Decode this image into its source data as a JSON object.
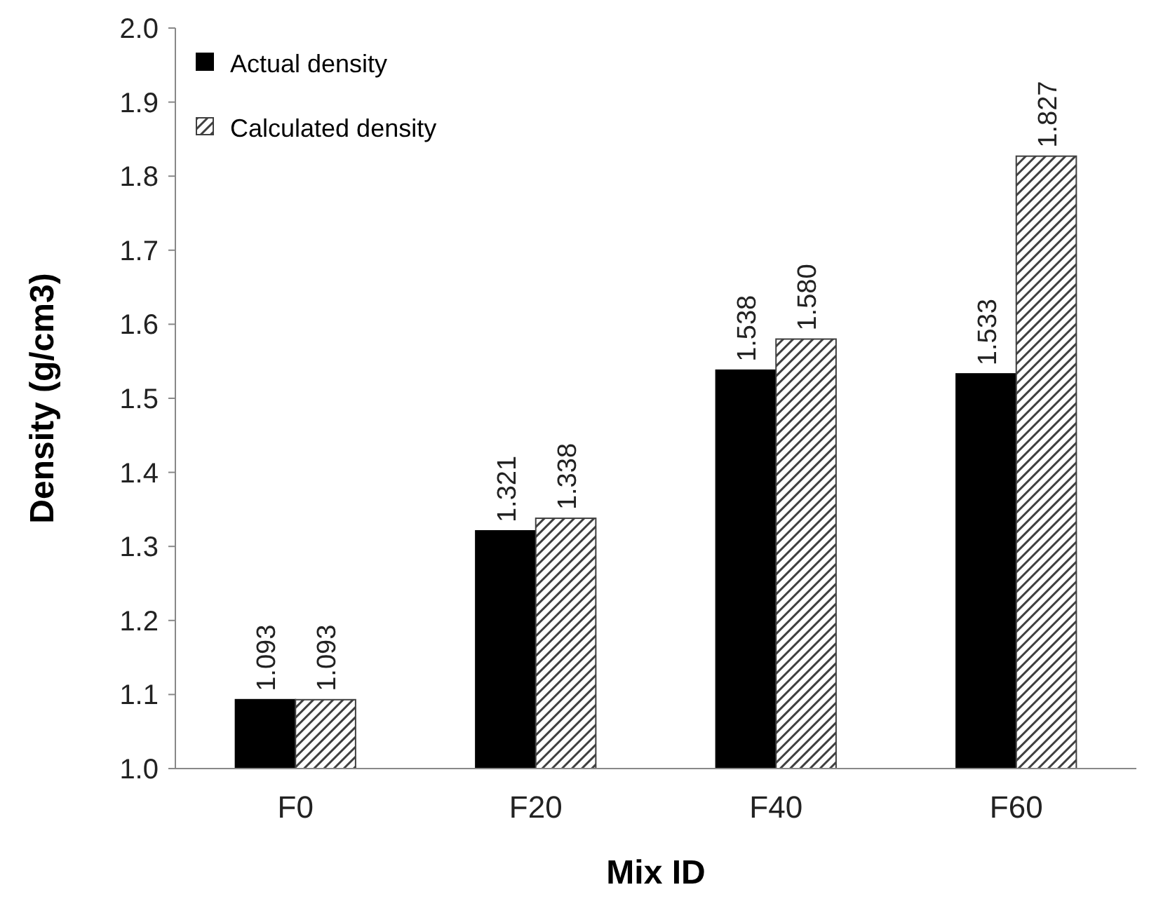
{
  "chart_data": {
    "type": "bar",
    "xlabel": "Mix ID",
    "ylabel": "Density (g/cm3)",
    "categories": [
      "F0",
      "F20",
      "F40",
      "F60"
    ],
    "series": [
      {
        "name": "Actual density",
        "color": "#000000",
        "values": [
          1.093,
          1.321,
          1.538,
          1.533
        ],
        "value_labels": [
          "1.093",
          "1.321",
          "1.538",
          "1.533"
        ]
      },
      {
        "name": "Calculated density",
        "color": "#404040",
        "values": [
          1.093,
          1.338,
          1.58,
          1.827
        ],
        "value_labels": [
          "1.093",
          "1.338",
          "1.580",
          "1.827"
        ]
      }
    ],
    "ylim": [
      1.0,
      2.0
    ],
    "yticks": [
      {
        "value": 1.0,
        "label": "1.0"
      },
      1.1,
      1.2,
      1.3,
      1.4,
      1.5,
      1.6,
      1.7,
      1.8,
      1.9,
      {
        "value": 2.0,
        "label": "2.0"
      }
    ],
    "legend": "top left",
    "grid": false
  }
}
